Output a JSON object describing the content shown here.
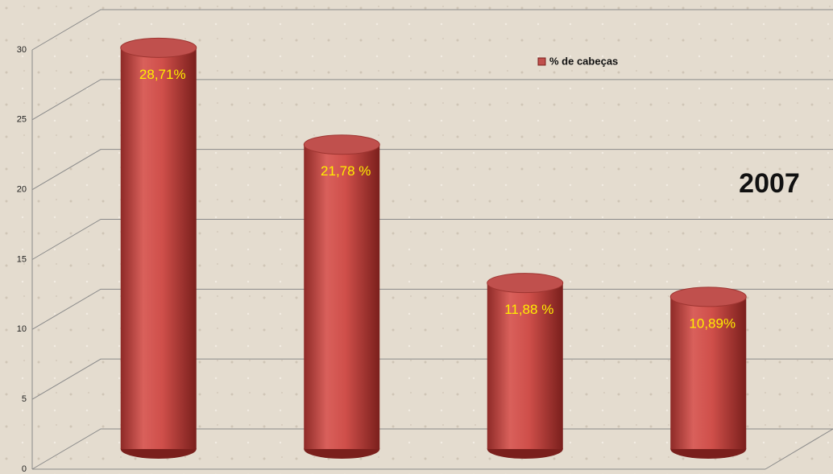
{
  "chart_data": {
    "type": "bar",
    "categories": [
      null,
      null,
      null,
      null
    ],
    "series": [
      {
        "name": "% de cabeças",
        "color": "#c0504d",
        "values": [
          28.71,
          21.78,
          11.88,
          10.89
        ],
        "value_labels": [
          "28,71%",
          "21,78 %",
          "11,88 %",
          "10,89%"
        ]
      }
    ],
    "annotation": "2007",
    "ylim": [
      0,
      30
    ],
    "yticks": [
      0,
      5,
      10,
      15,
      20,
      25,
      30
    ],
    "grid": true
  }
}
